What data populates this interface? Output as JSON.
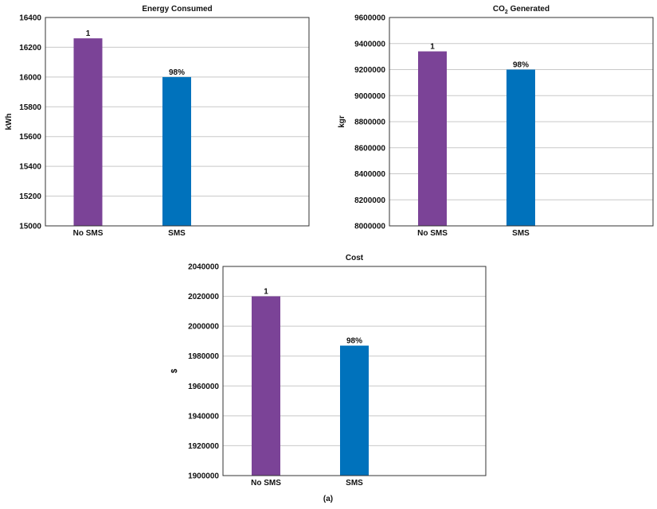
{
  "caption": "(a)",
  "colors": {
    "no_sms": "#7B4397",
    "sms": "#0072BC",
    "grid": "#c8c8c8",
    "frame": "#333333"
  },
  "chart_data": [
    {
      "type": "bar",
      "title": "Energy Consumed",
      "title_sub": "",
      "title_suffix": "",
      "ylabel": "kWh",
      "categories": [
        "No SMS",
        "SMS"
      ],
      "values": [
        16260,
        16000
      ],
      "data_labels": [
        "1",
        "98%"
      ],
      "bar_colors": [
        "#7B4397",
        "#0072BC"
      ],
      "ylim": [
        15000,
        16400
      ],
      "yticks": [
        "15000",
        "15200",
        "15400",
        "15600",
        "15800",
        "16000",
        "16200",
        "16400"
      ],
      "grid": true,
      "legend": "none"
    },
    {
      "type": "bar",
      "title": "CO",
      "title_sub": "2",
      "title_suffix": " Generated",
      "ylabel": "kgr",
      "categories": [
        "No SMS",
        "SMS"
      ],
      "values": [
        9340000,
        9200000
      ],
      "data_labels": [
        "1",
        "98%"
      ],
      "bar_colors": [
        "#7B4397",
        "#0072BC"
      ],
      "ylim": [
        8000000,
        9600000
      ],
      "yticks": [
        "8000000",
        "8200000",
        "8400000",
        "8600000",
        "8800000",
        "9000000",
        "9200000",
        "9400000",
        "9600000"
      ],
      "grid": true,
      "legend": "none"
    },
    {
      "type": "bar",
      "title": "Cost",
      "title_sub": "",
      "title_suffix": "",
      "ylabel": "$",
      "categories": [
        "No SMS",
        "SMS"
      ],
      "values": [
        2020000,
        1987000
      ],
      "data_labels": [
        "1",
        "98%"
      ],
      "bar_colors": [
        "#7B4397",
        "#0072BC"
      ],
      "ylim": [
        1900000,
        2040000
      ],
      "yticks": [
        "1900000",
        "1920000",
        "1940000",
        "1960000",
        "1980000",
        "2000000",
        "2020000",
        "2040000"
      ],
      "grid": true,
      "legend": "none"
    }
  ]
}
